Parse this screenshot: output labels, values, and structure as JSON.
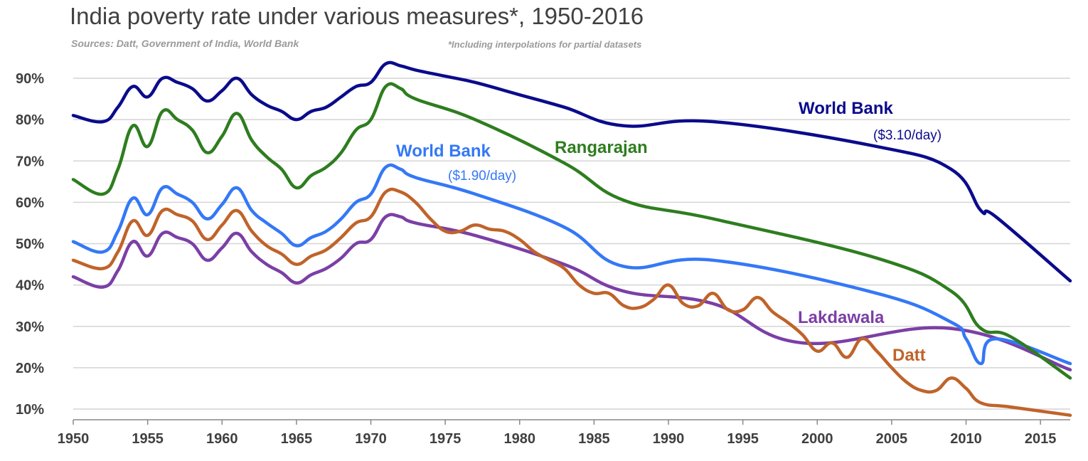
{
  "chart_data": {
    "type": "line",
    "title": "India poverty rate under various measures*, 1950-2016",
    "sources": "Sources: Datt, Government of India, World Bank",
    "note": "*Including interpolations for partial datasets",
    "xlim": [
      1950,
      2017
    ],
    "ylim": [
      8,
      95
    ],
    "x_ticks": [
      "1950",
      "1955",
      "1960",
      "1965",
      "1970",
      "1975",
      "1980",
      "1985",
      "1990",
      "1995",
      "2000",
      "2005",
      "2010",
      "2015"
    ],
    "y_ticks": [
      "10%",
      "20%",
      "30%",
      "40%",
      "50%",
      "60%",
      "70%",
      "80%",
      "90%"
    ],
    "y_tick_values": [
      10,
      20,
      30,
      40,
      50,
      60,
      70,
      80,
      90
    ],
    "grid": "horizontal",
    "series": [
      {
        "name": "World Bank",
        "sublabel": "($3.10/day)",
        "color": "#0b0b8c",
        "x": [
          1950,
          1952,
          1953,
          1954,
          1955,
          1956,
          1957,
          1958,
          1959,
          1960,
          1961,
          1962,
          1963,
          1964,
          1965,
          1966,
          1967,
          1968,
          1969,
          1970,
          1971,
          1972,
          1973,
          1975,
          1977,
          1980,
          1983,
          1987,
          1993,
          2004,
          2009,
          2011,
          2012,
          2017
        ],
        "y": [
          81,
          79.5,
          83,
          88,
          85.5,
          90,
          89,
          87.5,
          84.5,
          87,
          90,
          86,
          83.5,
          82,
          80,
          82,
          83,
          85.5,
          88,
          89,
          93.5,
          93,
          92,
          90.5,
          89,
          86,
          83,
          78.5,
          79.5,
          73.5,
          68,
          58,
          56.5,
          41
        ]
      },
      {
        "name": "Rangarajan",
        "color": "#2e7d1f",
        "x": [
          1950,
          1952,
          1953,
          1954,
          1955,
          1956,
          1957,
          1958,
          1959,
          1960,
          1961,
          1962,
          1963,
          1964,
          1965,
          1966,
          1967,
          1968,
          1969,
          1970,
          1971,
          1972,
          1973,
          1977,
          1983,
          1987,
          1993,
          2004,
          2009,
          2011,
          2013,
          2017
        ],
        "y": [
          65.5,
          62,
          68,
          78.5,
          73.5,
          82,
          80,
          77.5,
          72,
          76,
          81.5,
          75,
          71,
          68,
          63.5,
          66.5,
          68.5,
          72,
          77.5,
          80,
          88,
          87.5,
          85,
          80,
          69.5,
          60.5,
          56,
          46.5,
          38.5,
          29.5,
          27.5,
          17.5
        ]
      },
      {
        "name": "World Bank",
        "sublabel": "($1.90/day)",
        "color": "#3478f6",
        "x": [
          1950,
          1952,
          1953,
          1954,
          1955,
          1956,
          1957,
          1958,
          1959,
          1960,
          1961,
          1962,
          1963,
          1964,
          1965,
          1966,
          1967,
          1968,
          1969,
          1970,
          1971,
          1972,
          1973,
          1977,
          1983,
          1987,
          1993,
          2004,
          2009,
          2010,
          2011,
          2012,
          2017
        ],
        "y": [
          50.5,
          48,
          53,
          61,
          57,
          63.5,
          62,
          60,
          56,
          59.5,
          63.5,
          58,
          55,
          52.5,
          49.5,
          51.5,
          53,
          56,
          60,
          62,
          68.5,
          68,
          66,
          62,
          54,
          44.5,
          46,
          38,
          31,
          27,
          21,
          27,
          21
        ]
      },
      {
        "name": "Datt",
        "color": "#c0632a",
        "x": [
          1950,
          1952,
          1953,
          1954,
          1955,
          1956,
          1957,
          1958,
          1959,
          1960,
          1961,
          1962,
          1963,
          1964,
          1965,
          1966,
          1967,
          1968,
          1969,
          1970,
          1971,
          1972,
          1973,
          1974,
          1975,
          1976,
          1977,
          1978,
          1979,
          1980,
          1981,
          1982,
          1983,
          1984,
          1985,
          1986,
          1987,
          1988,
          1989,
          1990,
          1991,
          1992,
          1993,
          1994,
          1995,
          1996,
          1997,
          1998,
          1999,
          2000,
          2001,
          2002,
          2003,
          2004,
          2005,
          2006,
          2007,
          2008,
          2009,
          2010,
          2011,
          2013,
          2017
        ],
        "y": [
          46,
          44,
          48,
          55.5,
          52,
          58,
          57,
          55.5,
          51,
          54.5,
          58,
          53,
          49.5,
          47.5,
          45,
          47,
          48.5,
          51.5,
          55,
          56.5,
          62.5,
          62.5,
          60,
          56,
          53,
          53,
          54.5,
          53.5,
          53,
          51,
          48,
          46,
          44,
          40,
          38,
          38,
          35,
          34.5,
          36.5,
          40,
          35.5,
          35,
          38,
          34,
          34,
          37,
          33.5,
          31,
          28,
          24,
          26,
          22.5,
          27,
          24,
          20,
          16.5,
          14.5,
          14.5,
          17.5,
          15,
          11.5,
          10.5,
          8.5
        ]
      },
      {
        "name": "Lakdawala",
        "color": "#7b3fa6",
        "x": [
          1950,
          1952,
          1953,
          1954,
          1955,
          1956,
          1957,
          1958,
          1959,
          1960,
          1961,
          1962,
          1963,
          1964,
          1965,
          1966,
          1967,
          1968,
          1969,
          1970,
          1971,
          1972,
          1973,
          1977,
          1983,
          1987,
          1993,
          1999,
          2009,
          2017
        ],
        "y": [
          42,
          39.5,
          43.5,
          50.5,
          47,
          52.5,
          51.5,
          50,
          46,
          49,
          52.5,
          48,
          45,
          43,
          40.5,
          42.5,
          44,
          46.5,
          50,
          51,
          56.5,
          56.5,
          55,
          52,
          45,
          38.5,
          35.5,
          26,
          29.5,
          19.5
        ]
      }
    ],
    "labels": [
      {
        "series": 0,
        "text": "World Bank",
        "sub": "($3.10/day)"
      },
      {
        "series": 1,
        "text": "Rangarajan",
        "sub": ""
      },
      {
        "series": 2,
        "text": "World Bank",
        "sub": "($1.90/day)"
      },
      {
        "series": 3,
        "text": "Datt",
        "sub": ""
      },
      {
        "series": 4,
        "text": "Lakdawala",
        "sub": ""
      }
    ]
  }
}
